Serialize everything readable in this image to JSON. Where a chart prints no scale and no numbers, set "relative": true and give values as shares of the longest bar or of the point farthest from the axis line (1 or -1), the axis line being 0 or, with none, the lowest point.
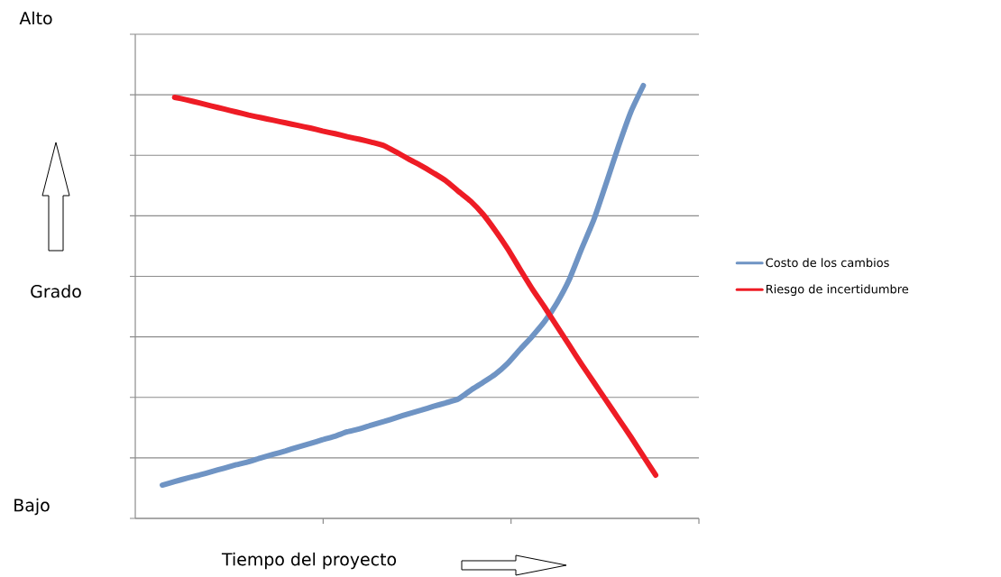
{
  "chart_data": {
    "type": "line",
    "relative": true,
    "xlabel": "Tiempo del proyecto",
    "ylabel": "Grado",
    "annotations": [
      "Alto",
      "Bajo"
    ],
    "categories": [
      null,
      null,
      null,
      null,
      null,
      null,
      null,
      null,
      null,
      null,
      null,
      null,
      null,
      null,
      null,
      null,
      null,
      null,
      null,
      null,
      null,
      null,
      null,
      null,
      null,
      null,
      null,
      null,
      null,
      null,
      null,
      null,
      null,
      null,
      null,
      null,
      null,
      null,
      null,
      null,
      null
    ],
    "series": [
      {
        "name": "Costo de los cambios",
        "color": "#6f94c4",
        "values": [
          0.077,
          0.085,
          0.093,
          0.1,
          0.108,
          0.116,
          0.124,
          0.131,
          0.14,
          0.148,
          0.156,
          0.165,
          0.173,
          0.182,
          0.19,
          0.2,
          0.207,
          0.216,
          0.224,
          0.233,
          0.242,
          0.25,
          0.259,
          0.267,
          0.276,
          0.296,
          0.314,
          0.333,
          0.358,
          0.39,
          0.421,
          0.455,
          0.498,
          0.552,
          0.623,
          0.691,
          0.775,
          0.861,
          0.94,
          1.0,
          null
        ]
      },
      {
        "name": "Riesgo de incertidumbre",
        "color": "#ee1c25",
        "values": [
          null,
          0.973,
          0.967,
          0.96,
          0.953,
          0.946,
          0.939,
          0.932,
          0.926,
          0.92,
          0.914,
          0.908,
          0.902,
          0.895,
          0.889,
          0.882,
          0.876,
          0.869,
          0.861,
          0.846,
          0.83,
          0.815,
          0.798,
          0.78,
          0.756,
          0.733,
          0.703,
          0.665,
          0.623,
          0.576,
          0.53,
          0.488,
          0.444,
          0.4,
          0.356,
          0.314,
          0.272,
          0.23,
          0.188,
          0.144,
          0.1
        ]
      }
    ],
    "grid": "y",
    "legend": "right",
    "marker": "none",
    "line_style": "solid"
  }
}
